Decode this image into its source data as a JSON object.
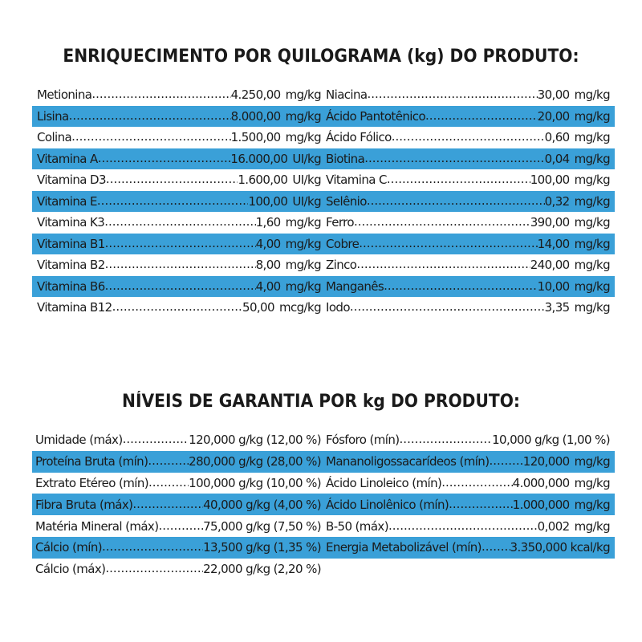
{
  "section1": {
    "title": "ENRIQUECIMENTO POR QUILOGRAMA (kg) DO PRODUTO:",
    "rows": [
      {
        "left": {
          "name": "Metionina",
          "value": "4.250,00",
          "unit": "mg/kg"
        },
        "right": {
          "name": "Niacina",
          "value": "30,00",
          "unit": "mg/kg"
        }
      },
      {
        "left": {
          "name": "Lisina",
          "value": "8.000,00",
          "unit": "mg/kg"
        },
        "right": {
          "name": "Ácido  Pantotênico",
          "value": "20,00",
          "unit": "mg/kg"
        }
      },
      {
        "left": {
          "name": "Colina",
          "value": "1.500,00",
          "unit": "mg/kg"
        },
        "right": {
          "name": "Ácido  Fólico",
          "value": "0,60",
          "unit": "mg/kg"
        }
      },
      {
        "left": {
          "name": "Vitamina  A",
          "value": "16.000,00",
          "unit": "UI/kg"
        },
        "right": {
          "name": "Biotina",
          "value": "0,04",
          "unit": "mg/kg"
        }
      },
      {
        "left": {
          "name": "Vitamina  D3",
          "value": "1.600,00",
          "unit": "UI/kg"
        },
        "right": {
          "name": "Vitamina  C",
          "value": "100,00",
          "unit": "mg/kg"
        }
      },
      {
        "left": {
          "name": "Vitamina  E",
          "value": "100,00",
          "unit": "UI/kg"
        },
        "right": {
          "name": "Selênio",
          "value": "0,32",
          "unit": "mg/kg"
        }
      },
      {
        "left": {
          "name": "Vitamina  K3",
          "value": "1,60",
          "unit": "mg/kg"
        },
        "right": {
          "name": "Ferro",
          "value": "390,00",
          "unit": "mg/kg"
        }
      },
      {
        "left": {
          "name": "Vitamina  B1",
          "value": "4,00",
          "unit": "mg/kg"
        },
        "right": {
          "name": "Cobre",
          "value": "14,00",
          "unit": "mg/kg"
        }
      },
      {
        "left": {
          "name": "Vitamina  B2",
          "value": "8,00",
          "unit": "mg/kg"
        },
        "right": {
          "name": "Zinco",
          "value": "240,00",
          "unit": "mg/kg"
        }
      },
      {
        "left": {
          "name": "Vitamina  B6",
          "value": "4,00",
          "unit": "mg/kg"
        },
        "right": {
          "name": "Manganês",
          "value": "10,00",
          "unit": "mg/kg"
        }
      },
      {
        "left": {
          "name": "Vitamina  B12",
          "value": "50,00",
          "unit": "mcg/kg"
        },
        "right": {
          "name": "Iodo",
          "value": "3,35",
          "unit": "mg/kg"
        }
      }
    ]
  },
  "section2": {
    "title": "NÍVEIS DE GARANTIA POR kg DO PRODUTO:",
    "rows": [
      {
        "left": {
          "name": "Umidade (máx)",
          "value": "120,000 g/kg (12,00 %)",
          "unit": ""
        },
        "right": {
          "name": "Fósforo (mín)",
          "value": "10,000 g/kg (1,00 %)",
          "unit": ""
        }
      },
      {
        "left": {
          "name": "Proteína Bruta (mín)",
          "value": "280,000 g/kg (28,00 %)",
          "unit": ""
        },
        "right": {
          "name": "Mananoligossacarídeos  (mín)",
          "value": "120,000",
          "unit": "mg/kg"
        }
      },
      {
        "left": {
          "name": "Extrato Etéreo (mín)",
          "value": "100,000 g/kg (10,00 %)",
          "unit": ""
        },
        "right": {
          "name": "Ácido Linoleico (mín)",
          "value": "4.000,000",
          "unit": "mg/kg"
        }
      },
      {
        "left": {
          "name": "Fibra Bruta (máx)",
          "value": "40,000 g/kg (4,00 %)",
          "unit": ""
        },
        "right": {
          "name": "Ácido Linolênico (mín)",
          "value": "1.000,000",
          "unit": "mg/kg"
        }
      },
      {
        "left": {
          "name": "Matéria Mineral (máx)",
          "value": "75,000 g/kg (7,50 %)",
          "unit": ""
        },
        "right": {
          "name": "B-50  (máx)",
          "value": "0,002",
          "unit": "mg/kg"
        }
      },
      {
        "left": {
          "name": "Cálcio (mín)",
          "value": "13,500 g/kg (1,35 %)",
          "unit": ""
        },
        "right": {
          "name": "Energia Metabolizável (mín)",
          "value": "3.350,000 kcal/kg",
          "unit": ""
        }
      },
      {
        "left": {
          "name": "Cálcio (máx)",
          "value": "22,000 g/kg (2,20 %)",
          "unit": ""
        },
        "right": null
      }
    ]
  },
  "colors": {
    "highlight_row": "#3aa0d8",
    "text": "#1a1a1a",
    "background": "#ffffff"
  }
}
